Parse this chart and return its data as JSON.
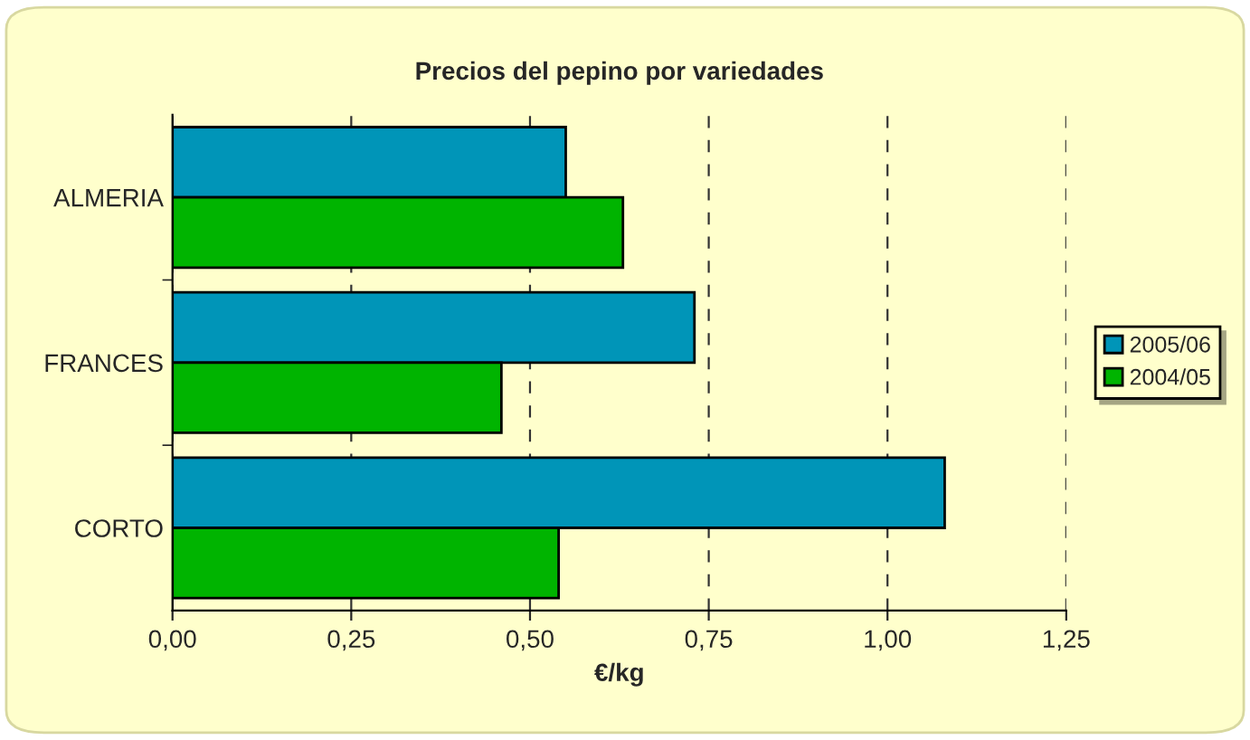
{
  "chart_data": {
    "type": "bar",
    "orientation": "horizontal",
    "title": "Precios del pepino por variedades",
    "xlabel": "€/kg",
    "categories": [
      "ALMERIA",
      "FRANCES",
      "CORTO"
    ],
    "series": [
      {
        "name": "2005/06",
        "color": "#0095b8",
        "values": [
          0.55,
          0.73,
          1.08
        ]
      },
      {
        "name": "2004/05",
        "color": "#00b400",
        "values": [
          0.63,
          0.46,
          0.54
        ]
      }
    ],
    "xlim": [
      0,
      1.25
    ],
    "xticks": [
      {
        "value": 0,
        "label": "0,00"
      },
      {
        "value": 0.25,
        "label": "0,25"
      },
      {
        "value": 0.5,
        "label": "0,50"
      },
      {
        "value": 0.75,
        "label": "0,75"
      },
      {
        "value": 1.0,
        "label": "1,00"
      },
      {
        "value": 1.25,
        "label": "1,25"
      }
    ],
    "grid": "x",
    "legend": "right"
  }
}
